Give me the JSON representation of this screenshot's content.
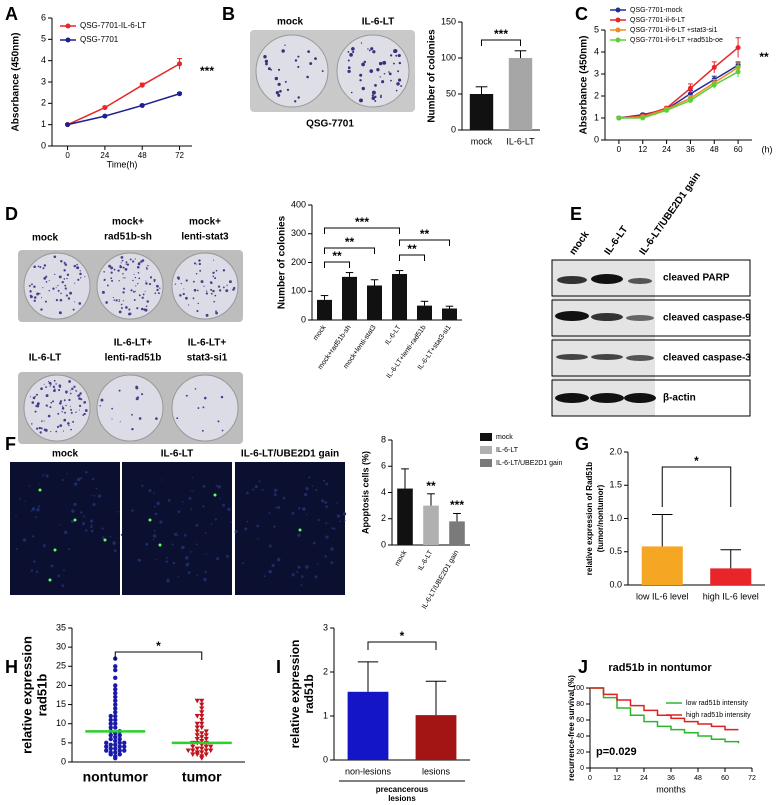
{
  "panel_labels": [
    "A",
    "B",
    "C",
    "D",
    "E",
    "F",
    "G",
    "H",
    "I",
    "J"
  ],
  "images": {
    "B": {
      "labels": [
        "mock",
        "IL-6-LT"
      ],
      "caption": "QSG-7701"
    },
    "D": {
      "labels": [
        [
          "mock"
        ],
        [
          "mock+",
          "rad51b-sh"
        ],
        [
          "mock+",
          "lenti-stat3"
        ],
        [
          "IL-6-LT"
        ],
        [
          "IL-6-LT+",
          "lenti-rad51b"
        ],
        [
          "IL-6-LT+",
          "stat3-si1"
        ]
      ]
    },
    "E": {
      "columns": [
        "mock",
        "IL-6-LT",
        "IL-6-LT/UBE2D1 gain"
      ],
      "rows": [
        "cleaved PARP",
        "cleaved caspase-9",
        "cleaved caspase-3",
        "β-actin"
      ]
    },
    "F": {
      "labels": [
        "mock",
        "IL-6-LT",
        "IL-6-LT/UBE2D1 gain"
      ]
    }
  },
  "chart_data": [
    {
      "type": "line",
      "xlabel": "Time(h)",
      "ylabel": "Absorbance (450nm)",
      "x": [
        0,
        24,
        48,
        72
      ],
      "xlim": [
        -10,
        80
      ],
      "xticks": [
        0,
        24,
        48,
        72
      ],
      "ylim": [
        0,
        6
      ],
      "yticks": [
        0,
        1,
        2,
        3,
        4,
        5,
        6
      ],
      "legend": "top-left",
      "series": [
        {
          "name": "QSG-7701-IL-6-LT",
          "color": "#e8262a",
          "values": [
            1.0,
            1.8,
            2.85,
            3.85
          ],
          "errors": [
            0.05,
            0.07,
            0.1,
            0.25
          ]
        },
        {
          "name": "QSG-7701",
          "color": "#1f1f8f",
          "values": [
            1.0,
            1.4,
            1.9,
            2.45
          ],
          "errors": [
            0.04,
            0.04,
            0.05,
            0.06
          ]
        }
      ],
      "annotations": [
        "***"
      ]
    },
    {
      "type": "bar",
      "ylabel": "Number of colonies",
      "categories": [
        "mock",
        "IL-6-LT"
      ],
      "values": [
        50,
        100
      ],
      "errors": [
        10,
        10
      ],
      "colors": [
        "#111111",
        "#a6a6a6"
      ],
      "ylim": [
        0,
        150
      ],
      "yticks": [
        0,
        50,
        100,
        150
      ],
      "annotations": [
        "***"
      ]
    },
    {
      "type": "line",
      "xlabel": "(h)",
      "ylabel": "Absorbance (450nm)",
      "x": [
        0,
        12,
        24,
        36,
        48,
        60
      ],
      "xlim": [
        -7,
        67
      ],
      "xticks": [
        0,
        12,
        24,
        36,
        48,
        60
      ],
      "ylim": [
        0,
        5
      ],
      "yticks": [
        0,
        1,
        2,
        3,
        4,
        5
      ],
      "legend": "top-left",
      "series": [
        {
          "name": "QSG-7701-mock",
          "color": "#1f2f9a",
          "values": [
            1.0,
            1.15,
            1.4,
            2.1,
            2.75,
            3.4
          ],
          "errors": [
            0.05,
            0.05,
            0.06,
            0.15,
            0.15,
            0.15
          ]
        },
        {
          "name": "QSG-7701-il-6-LT",
          "color": "#e8262a",
          "values": [
            1.0,
            1.1,
            1.45,
            2.35,
            3.3,
            4.2
          ],
          "errors": [
            0.05,
            0.05,
            0.06,
            0.2,
            0.25,
            0.45
          ]
        },
        {
          "name": "QSG-7701-il-6-LT +stat3-si1",
          "color": "#f08a24",
          "values": [
            1.0,
            1.05,
            1.4,
            1.9,
            2.6,
            3.3
          ],
          "errors": [
            0.05,
            0.05,
            0.06,
            0.12,
            0.15,
            0.2
          ]
        },
        {
          "name": "QSG-7701-il-6-LT +rad51b-oe",
          "color": "#5ad13a",
          "values": [
            1.0,
            1.0,
            1.35,
            1.8,
            2.5,
            3.1
          ],
          "errors": [
            0.05,
            0.05,
            0.06,
            0.12,
            0.15,
            0.25
          ]
        }
      ],
      "annotations": [
        "**"
      ]
    },
    {
      "type": "bar",
      "ylabel": "Number of colonies",
      "categories": [
        "mock",
        "mock+rad51b-sh",
        "mock+lenti-stat3",
        "IL-6-LT",
        "IL-6-LT+lenti-rad51b",
        "IL-6-LT+stat3-si1"
      ],
      "values": [
        70,
        150,
        120,
        160,
        50,
        40
      ],
      "errors": [
        15,
        15,
        20,
        12,
        15,
        8
      ],
      "colors": [
        "#111111",
        "#111111",
        "#111111",
        "#111111",
        "#111111",
        "#111111"
      ],
      "ylim": [
        0,
        400
      ],
      "yticks": [
        0,
        100,
        200,
        300,
        400
      ],
      "annotations": [
        "**",
        "**",
        "***",
        "**",
        "**"
      ]
    },
    {
      "type": "bar",
      "ylabel": "Apoptosis cells (%)",
      "categories": [
        "mock",
        "IL-6-LT",
        "IL-6-LT/UBE2D1 gain"
      ],
      "values": [
        4.3,
        3.0,
        1.8
      ],
      "errors": [
        1.5,
        0.9,
        0.6
      ],
      "colors": [
        "#111111",
        "#b0b0b0",
        "#7a7a7a"
      ],
      "ylim": [
        0,
        8
      ],
      "yticks": [
        0,
        2,
        4,
        6,
        8
      ],
      "legend": "top-right",
      "annotations": [
        "**",
        "***"
      ]
    },
    {
      "type": "bar",
      "ylabel": [
        "relative expression of Rad51b",
        "(tumor/nontumor)"
      ],
      "categories": [
        "low IL-6 level",
        "high IL-6 level"
      ],
      "values": [
        0.58,
        0.25
      ],
      "errors": [
        0.48,
        0.28
      ],
      "colors": [
        "#f5a623",
        "#e8262a"
      ],
      "ylim": [
        0,
        2
      ],
      "yticks": [
        {
          "value": 0,
          "label": "0.0"
        },
        0.5,
        {
          "value": 1,
          "label": "1.0"
        },
        1.5,
        {
          "value": 2,
          "label": "2.0"
        }
      ],
      "annotations": [
        "*"
      ]
    },
    {
      "type": "scatter",
      "ylabel": [
        "relative expression",
        "rad51b"
      ],
      "categories": [
        "nontumor",
        "tumor"
      ],
      "ylim": [
        0,
        35
      ],
      "yticks": [
        0,
        5,
        10,
        15,
        20,
        25,
        30,
        35
      ],
      "mean_color": "#2bd12b",
      "series": [
        {
          "color": "#1a1aa8",
          "marker": "circle",
          "mean": 8,
          "values": [
            1,
            1.5,
            2,
            2,
            2.5,
            2.5,
            3,
            3,
            3,
            3.5,
            3.5,
            4,
            4,
            4,
            4.5,
            4.5,
            5,
            5,
            5,
            5.5,
            6,
            6,
            6.5,
            7,
            7,
            7.5,
            8,
            8,
            9,
            9,
            10,
            10,
            11,
            11,
            12,
            12,
            13,
            14,
            15,
            16,
            17,
            18,
            19,
            20,
            22,
            24,
            25,
            27
          ]
        },
        {
          "color": "#c0141c",
          "marker": "triangle-down",
          "mean": 5,
          "values": [
            1,
            1.5,
            2,
            2,
            2,
            2.5,
            2.5,
            3,
            3,
            3,
            3,
            3.5,
            3.5,
            4,
            4,
            4,
            4.5,
            5,
            5,
            5,
            5.5,
            6,
            6,
            6.5,
            7,
            7,
            7.5,
            8,
            8,
            9,
            9,
            10,
            10,
            11,
            12,
            12,
            13,
            14,
            15,
            16,
            16
          ]
        }
      ],
      "annotations": [
        "*"
      ]
    },
    {
      "type": "bar",
      "ylabel": [
        "relative expression",
        "rad51b"
      ],
      "categories": [
        "non-lesions",
        "lesions"
      ],
      "values": [
        1.55,
        1.02
      ],
      "errors": [
        0.68,
        0.77
      ],
      "colors": [
        "#1515c8",
        "#a31515"
      ],
      "ylim": [
        0,
        3
      ],
      "yticks": [
        0,
        1,
        2,
        3
      ],
      "group_label": [
        "precancerous",
        "lesions"
      ],
      "annotations": [
        "*"
      ]
    },
    {
      "type": "line",
      "step": true,
      "title": "rad51b in nontumor",
      "xlabel": "months",
      "ylabel": "recurrence-free survival (%)",
      "x": [
        0,
        6,
        12,
        18,
        24,
        30,
        36,
        42,
        48,
        54,
        60,
        66
      ],
      "xlim": [
        0,
        72
      ],
      "xticks": [
        0,
        12,
        24,
        36,
        48,
        60,
        72
      ],
      "ylim": [
        0,
        100
      ],
      "yticks": [
        0,
        20,
        40,
        60,
        80,
        100
      ],
      "legend": "top-right",
      "series": [
        {
          "name": "low rad51b intensity",
          "color": "#2bb52b",
          "values": [
            100,
            88,
            75,
            66,
            58,
            52,
            48,
            44,
            40,
            36,
            33,
            31
          ]
        },
        {
          "name": "high rad51b intensity",
          "color": "#e02020",
          "values": [
            100,
            92,
            85,
            78,
            72,
            66,
            62,
            58,
            55,
            52,
            48,
            48
          ]
        }
      ],
      "annotations": [
        "p=0.029"
      ]
    }
  ]
}
